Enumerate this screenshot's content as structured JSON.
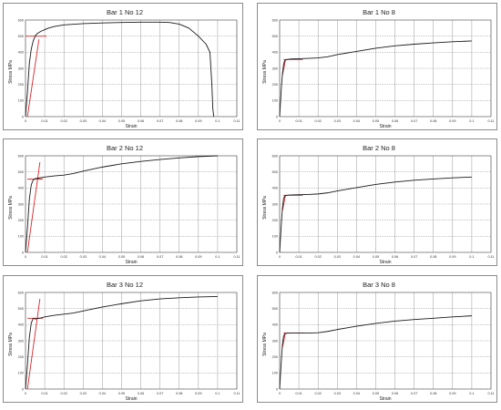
{
  "colors": {
    "curve": "#1a1a1a",
    "fit": "#d9252a",
    "grid": "#9a9a9a",
    "frame": "#8c8c8c"
  },
  "chart_data": [
    {
      "type": "line",
      "title": "Bar 1 No 12",
      "xlabel": "Strain",
      "ylabel": "Stress MPa",
      "xlim": [
        0,
        0.11
      ],
      "ylim": [
        0,
        600
      ],
      "xticks": [
        "0",
        "0.01",
        "0.02",
        "0.03",
        "0.04",
        "0.05",
        "0.06",
        "0.07",
        "0.08",
        "0.09",
        "0.1",
        "0.11"
      ],
      "yticks": [
        "0",
        "100",
        "200",
        "300",
        "400",
        "500",
        "600"
      ],
      "grid": true,
      "curve": {
        "x": [
          0,
          0.001,
          0.002,
          0.003,
          0.004,
          0.005,
          0.006,
          0.008,
          0.01,
          0.012,
          0.015,
          0.02,
          0.03,
          0.04,
          0.05,
          0.06,
          0.07,
          0.075,
          0.08,
          0.085,
          0.09,
          0.094,
          0.096,
          0.097,
          0.0975,
          0.098
        ],
        "y": [
          0,
          150,
          330,
          420,
          470,
          500,
          515,
          530,
          540,
          550,
          560,
          570,
          578,
          582,
          585,
          587,
          587,
          585,
          575,
          550,
          500,
          450,
          400,
          200,
          50,
          0
        ]
      },
      "fits": [
        {
          "x": [
            0.001,
            0.007
          ],
          "y": [
            0,
            480
          ]
        },
        {
          "x": [
            0,
            0.011
          ],
          "y": [
            500,
            500
          ]
        }
      ]
    },
    {
      "type": "line",
      "title": "Bar 1 No 8",
      "xlabel": "Strain",
      "ylabel": "Stress MPa",
      "xlim": [
        0,
        0.11
      ],
      "ylim": [
        0,
        600
      ],
      "xticks": [
        "0",
        "0.01",
        "0.02",
        "0.03",
        "0.04",
        "0.05",
        "0.06",
        "0.07",
        "0.08",
        "0.09",
        "0.1",
        "0.11"
      ],
      "yticks": [
        "0",
        "100",
        "200",
        "300",
        "400",
        "500",
        "600"
      ],
      "grid": true,
      "curve": {
        "x": [
          0,
          0.0005,
          0.001,
          0.0015,
          0.002,
          0.0025,
          0.003,
          0.004,
          0.006,
          0.01,
          0.015,
          0.02,
          0.025,
          0.03,
          0.04,
          0.05,
          0.06,
          0.07,
          0.08,
          0.09,
          0.1
        ],
        "y": [
          0,
          100,
          200,
          270,
          320,
          345,
          352,
          355,
          358,
          360,
          362,
          365,
          372,
          385,
          405,
          425,
          440,
          450,
          458,
          465,
          470
        ]
      },
      "fits": [
        {
          "x": [
            0.0015,
            0.003
          ],
          "y": [
            260,
            350
          ]
        },
        {
          "x": [
            0.002,
            0.012
          ],
          "y": [
            355,
            355
          ]
        }
      ]
    },
    {
      "type": "line",
      "title": "Bar 2 No 12",
      "xlabel": "Strain",
      "ylabel": "Stress MPa",
      "xlim": [
        0,
        0.11
      ],
      "ylim": [
        0,
        600
      ],
      "xticks": [
        "0",
        "0.01",
        "0.02",
        "0.03",
        "0.04",
        "0.05",
        "0.06",
        "0.07",
        "0.08",
        "0.09",
        "0.1",
        "0.11"
      ],
      "yticks": [
        "0",
        "100",
        "200",
        "300",
        "400",
        "500",
        "600"
      ],
      "grid": true,
      "curve": {
        "x": [
          0,
          0.001,
          0.002,
          0.003,
          0.004,
          0.005,
          0.007,
          0.01,
          0.015,
          0.02,
          0.025,
          0.03,
          0.04,
          0.05,
          0.06,
          0.07,
          0.08,
          0.09,
          0.1
        ],
        "y": [
          0,
          150,
          330,
          420,
          450,
          458,
          462,
          468,
          475,
          480,
          490,
          505,
          530,
          550,
          565,
          577,
          587,
          595,
          600
        ]
      },
      "fits": [
        {
          "x": [
            0.001,
            0.0075
          ],
          "y": [
            0,
            560
          ]
        },
        {
          "x": [
            0.001,
            0.009
          ],
          "y": [
            455,
            455
          ]
        }
      ]
    },
    {
      "type": "line",
      "title": "Bar 2 No 8",
      "xlabel": "Strain",
      "ylabel": "Stress MPa",
      "xlim": [
        0,
        0.11
      ],
      "ylim": [
        0,
        600
      ],
      "xticks": [
        "0",
        "0.01",
        "0.02",
        "0.03",
        "0.04",
        "0.05",
        "0.06",
        "0.07",
        "0.08",
        "0.09",
        "0.1",
        "0.11"
      ],
      "yticks": [
        "0",
        "100",
        "200",
        "300",
        "400",
        "500",
        "600"
      ],
      "grid": true,
      "curve": {
        "x": [
          0,
          0.0005,
          0.001,
          0.0015,
          0.002,
          0.0025,
          0.003,
          0.004,
          0.006,
          0.01,
          0.015,
          0.02,
          0.025,
          0.03,
          0.04,
          0.05,
          0.06,
          0.07,
          0.08,
          0.09,
          0.1
        ],
        "y": [
          0,
          100,
          200,
          280,
          330,
          348,
          352,
          355,
          357,
          358,
          360,
          363,
          370,
          382,
          402,
          422,
          437,
          448,
          456,
          463,
          468
        ]
      },
      "fits": [
        {
          "x": [
            0.0015,
            0.003
          ],
          "y": [
            260,
            355
          ]
        },
        {
          "x": [
            0.002,
            0.012
          ],
          "y": [
            355,
            355
          ]
        }
      ]
    },
    {
      "type": "line",
      "title": "Bar 3 No 12",
      "xlabel": "Strain",
      "ylabel": "Stress MPa",
      "xlim": [
        0,
        0.11
      ],
      "ylim": [
        0,
        600
      ],
      "xticks": [
        "0",
        "0.01",
        "0.02",
        "0.03",
        "0.04",
        "0.05",
        "0.06",
        "0.07",
        "0.08",
        "0.09",
        "0.1",
        "0.11"
      ],
      "yticks": [
        "0",
        "100",
        "200",
        "300",
        "400",
        "500",
        "600"
      ],
      "grid": true,
      "curve": {
        "x": [
          0,
          0.001,
          0.002,
          0.003,
          0.004,
          0.005,
          0.006,
          0.008,
          0.01,
          0.015,
          0.02,
          0.025,
          0.03,
          0.04,
          0.05,
          0.06,
          0.07,
          0.08,
          0.09,
          0.1
        ],
        "y": [
          0,
          150,
          320,
          410,
          440,
          435,
          438,
          442,
          448,
          458,
          465,
          472,
          485,
          510,
          530,
          548,
          560,
          567,
          572,
          575
        ]
      },
      "fits": [
        {
          "x": [
            0.001,
            0.0075
          ],
          "y": [
            0,
            560
          ]
        },
        {
          "x": [
            0.001,
            0.009
          ],
          "y": [
            440,
            440
          ]
        }
      ]
    },
    {
      "type": "line",
      "title": "Bar 3 No 8",
      "xlabel": "Strain",
      "ylabel": "Stress MPa",
      "xlim": [
        0,
        0.11
      ],
      "ylim": [
        0,
        600
      ],
      "xticks": [
        "0",
        "0.01",
        "0.02",
        "0.03",
        "0.04",
        "0.05",
        "0.06",
        "0.07",
        "0.08",
        "0.09",
        "0.1",
        "0.11"
      ],
      "yticks": [
        "0",
        "100",
        "200",
        "300",
        "400",
        "500",
        "600"
      ],
      "grid": true,
      "curve": {
        "x": [
          0,
          0.0005,
          0.001,
          0.0015,
          0.002,
          0.0025,
          0.003,
          0.004,
          0.006,
          0.01,
          0.015,
          0.02,
          0.025,
          0.03,
          0.04,
          0.05,
          0.06,
          0.07,
          0.08,
          0.09,
          0.1
        ],
        "y": [
          0,
          100,
          200,
          280,
          325,
          340,
          345,
          347,
          348,
          348,
          348,
          350,
          358,
          370,
          390,
          408,
          422,
          432,
          440,
          448,
          455
        ]
      },
      "fits": [
        {
          "x": [
            0.0015,
            0.003
          ],
          "y": [
            260,
            350
          ]
        },
        {
          "x": [
            0.002,
            0.013
          ],
          "y": [
            348,
            348
          ]
        }
      ]
    }
  ]
}
